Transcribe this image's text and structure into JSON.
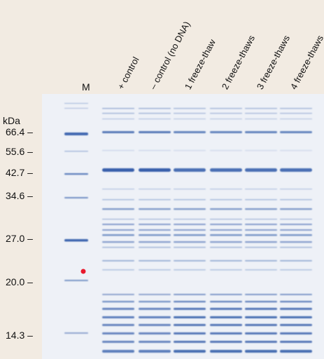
{
  "figure": {
    "marker_lane_label": "M",
    "lane_labels": [
      "+ control",
      "– control (no DNA)",
      "1 freeze-thaw",
      "2 freeze-thaws",
      "3 freeze-thaws",
      "4 freeze-thaws"
    ],
    "unit_label": "kDa",
    "mw_markers": [
      "66.4 –",
      "55.6 –",
      "42.7 –",
      "34.6 –",
      "27.0 –",
      "20.0 –",
      "14.3 –"
    ],
    "colors": {
      "background": "#f2ebe2",
      "gel": "#eef1f7",
      "band": "#2f5aa8",
      "marker_dot": "#e8192c"
    }
  }
}
